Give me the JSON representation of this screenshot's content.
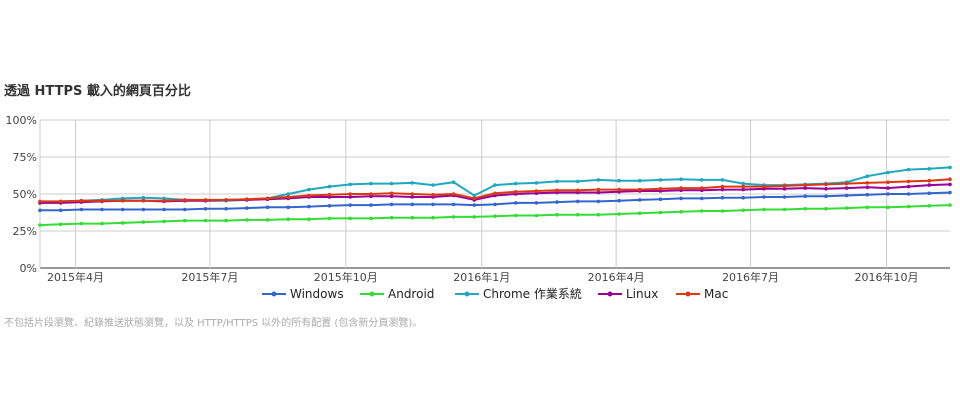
{
  "title": "透過 HTTPS 載入的網頁百分比",
  "footnote": "不包括片段瀏覽、紀錄推送狀態瀏覽，以及 HTTP/HTTPS 以外的所有配置 (包含新分頁瀏覽)。",
  "chart_data": {
    "type": "line",
    "title": "透過 HTTPS 載入的網頁百分比",
    "xlabel": "",
    "ylabel": "",
    "grid": true,
    "legend_position": "bottom",
    "ylim": [
      0,
      100
    ],
    "y_ticks": [
      "0%",
      "25%",
      "50%",
      "75%",
      "100%"
    ],
    "xlim": [
      "2015-03-08",
      "2016-11-13"
    ],
    "x_ticks": [
      {
        "date": "2015-04-01",
        "label": "2015年4月"
      },
      {
        "date": "2015-07-01",
        "label": "2015年7月"
      },
      {
        "date": "2015-10-01",
        "label": "2015年10月"
      },
      {
        "date": "2016-01-01",
        "label": "2016年1月"
      },
      {
        "date": "2016-04-01",
        "label": "2016年4月"
      },
      {
        "date": "2016-07-01",
        "label": "2016年7月"
      },
      {
        "date": "2016-10-01",
        "label": "2016年10月"
      }
    ],
    "x": [
      "2015-03-08",
      "2015-03-22",
      "2015-04-05",
      "2015-04-19",
      "2015-05-03",
      "2015-05-17",
      "2015-05-31",
      "2015-06-14",
      "2015-06-28",
      "2015-07-12",
      "2015-07-26",
      "2015-08-09",
      "2015-08-23",
      "2015-09-06",
      "2015-09-20",
      "2015-10-04",
      "2015-10-18",
      "2015-11-01",
      "2015-11-15",
      "2015-11-29",
      "2015-12-13",
      "2015-12-27",
      "2016-01-10",
      "2016-01-24",
      "2016-02-07",
      "2016-02-21",
      "2016-03-06",
      "2016-03-20",
      "2016-04-03",
      "2016-04-17",
      "2016-05-01",
      "2016-05-15",
      "2016-05-29",
      "2016-06-12",
      "2016-06-26",
      "2016-07-10",
      "2016-07-24",
      "2016-08-07",
      "2016-08-21",
      "2016-09-04",
      "2016-09-18",
      "2016-10-02",
      "2016-10-16",
      "2016-10-30",
      "2016-11-13"
    ],
    "series": [
      {
        "name": "Windows",
        "color": "#3366cc",
        "values": [
          39,
          39,
          39.5,
          39.5,
          39.5,
          39.5,
          39.5,
          39.5,
          40,
          40,
          40.5,
          41,
          41,
          41.5,
          42,
          42.5,
          42.5,
          43,
          43,
          43,
          43,
          42.5,
          43,
          44,
          44,
          44.5,
          45,
          45,
          45.5,
          46,
          46.5,
          47,
          47,
          47.5,
          47.5,
          48,
          48,
          48.5,
          48.5,
          49,
          49.5,
          50,
          50,
          50.5,
          51
        ]
      },
      {
        "name": "Android",
        "color": "#33dd33",
        "values": [
          29,
          29.5,
          30,
          30,
          30.5,
          31,
          31.5,
          32,
          32,
          32,
          32.5,
          32.5,
          33,
          33,
          33.5,
          33.5,
          33.5,
          34,
          34,
          34,
          34.5,
          34.5,
          35,
          35.5,
          35.5,
          36,
          36,
          36,
          36.5,
          37,
          37.5,
          38,
          38.5,
          38.5,
          39,
          39.5,
          39.5,
          40,
          40,
          40.5,
          41,
          41,
          41.5,
          42,
          42.5
        ]
      },
      {
        "name": "Chrome 作業系統",
        "color": "#1fa8bf",
        "values": [
          44,
          45,
          45.5,
          46,
          47,
          47.5,
          47,
          46,
          45.5,
          45.5,
          46,
          47,
          50,
          53,
          55,
          56.5,
          57,
          57,
          57.5,
          56,
          58,
          49,
          56,
          57,
          57.5,
          58.5,
          58.5,
          59.5,
          59,
          59,
          59.5,
          60,
          59.5,
          59.5,
          57,
          56,
          56,
          56.5,
          57,
          58,
          62,
          64.5,
          66.5,
          67,
          68
        ]
      },
      {
        "name": "Linux",
        "color": "#990099",
        "values": [
          44,
          44,
          44.5,
          45,
          45.5,
          45.5,
          45,
          45.5,
          45.5,
          46,
          46,
          46.5,
          47,
          48,
          48,
          48,
          48.5,
          48.5,
          48,
          48,
          49,
          46,
          49,
          50,
          50.5,
          51,
          51,
          51,
          51.5,
          52,
          52,
          52.5,
          52.5,
          53,
          53,
          53.5,
          53.5,
          54,
          53.5,
          54,
          54.5,
          54,
          55,
          56,
          56.5
        ]
      },
      {
        "name": "Mac",
        "color": "#dc3912",
        "values": [
          45,
          45,
          45.5,
          45.5,
          45.5,
          45.5,
          45.5,
          46,
          46,
          46,
          46.5,
          47,
          48,
          49,
          49.5,
          50,
          50,
          50.5,
          50,
          49.5,
          50,
          47,
          50.5,
          51.5,
          52,
          52.5,
          52.5,
          53,
          53,
          53,
          53.5,
          54,
          54,
          55,
          55,
          55,
          55.5,
          56,
          56.5,
          57,
          57.5,
          58,
          58.5,
          59,
          60
        ]
      }
    ]
  }
}
